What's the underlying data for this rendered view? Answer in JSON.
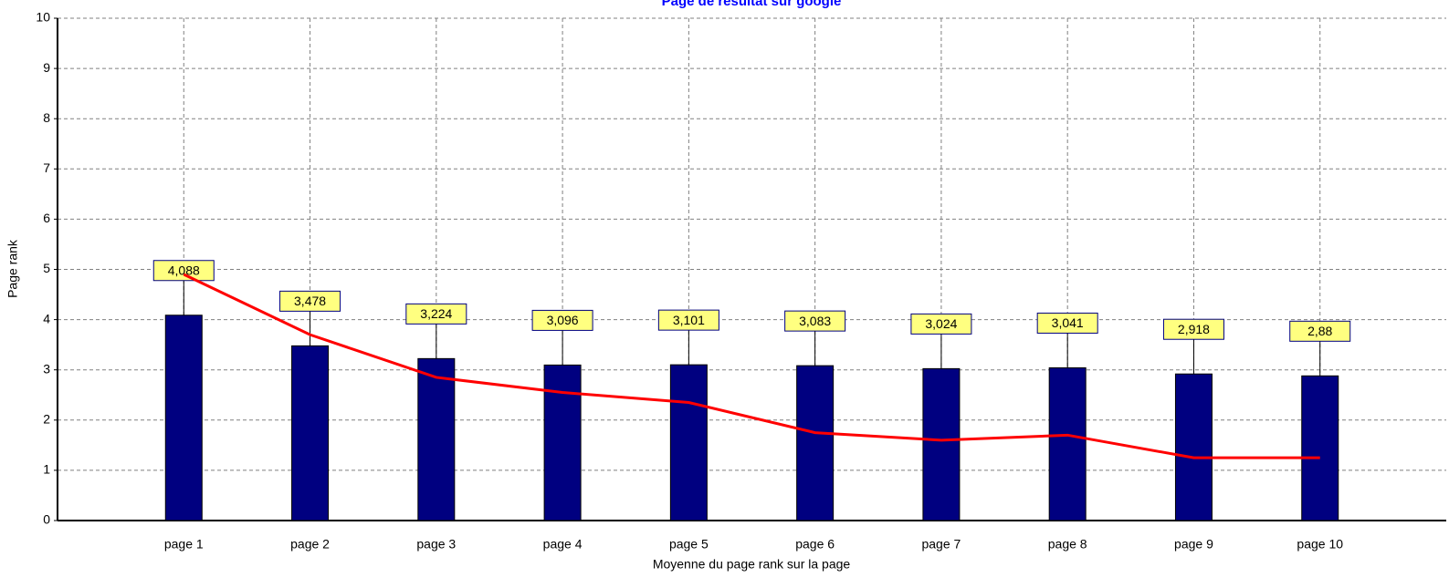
{
  "chart_data": {
    "type": "bar",
    "title": "Page de résultat sur google",
    "x_label": "Moyenne du page rank sur la page",
    "y_label": "Page rank",
    "categories": [
      "page 1",
      "page 2",
      "page 3",
      "page 4",
      "page 5",
      "page 6",
      "page 7",
      "page 8",
      "page 9",
      "page 10"
    ],
    "series": [
      {
        "type": "bar",
        "color": "#000080",
        "values": [
          4.088,
          3.478,
          3.224,
          3.096,
          3.101,
          3.083,
          3.024,
          3.041,
          2.918,
          2.88
        ],
        "value_labels": [
          "4,088",
          "3,478",
          "3,224",
          "3,096",
          "3,101",
          "3,083",
          "3,024",
          "3,041",
          "2,918",
          "2,88"
        ]
      },
      {
        "type": "line",
        "color": "#ff0000",
        "values": [
          4.9,
          3.7,
          2.85,
          2.55,
          2.35,
          1.75,
          1.6,
          1.7,
          1.25,
          1.25
        ]
      }
    ],
    "ylim": [
      0,
      10
    ],
    "yticks": [
      0,
      1,
      2,
      3,
      4,
      5,
      6,
      7,
      8,
      9,
      10
    ],
    "grid": true
  }
}
